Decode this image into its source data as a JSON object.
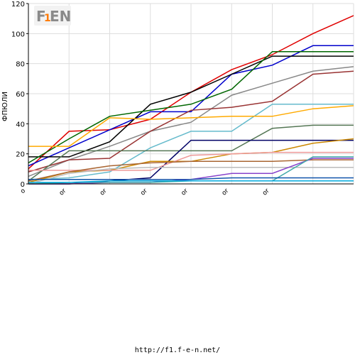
{
  "footer_url": "http://f1.f-e-n.net/",
  "logo_text": "F1EN",
  "chart_data": {
    "type": "line",
    "title": "",
    "xlabel": "",
    "ylabel": "ФПЮЛИ",
    "ylim": [
      0,
      120
    ],
    "yticks": [
      0,
      20,
      40,
      60,
      80,
      100,
      120
    ],
    "categories": [
      "o",
      "or",
      "or",
      "or",
      "or",
      "or",
      "or",
      "",
      ""
    ],
    "grid": true,
    "legend": "none",
    "series": [
      {
        "color": "#e00000",
        "values": [
          10,
          35,
          36,
          43,
          61,
          76,
          86,
          100,
          112
        ]
      },
      {
        "color": "#0000cc",
        "values": [
          12,
          24,
          36,
          48,
          48,
          73,
          79,
          92,
          92
        ]
      },
      {
        "color": "#000000",
        "values": [
          18,
          18,
          28,
          53,
          61,
          73,
          85,
          85,
          85
        ]
      },
      {
        "color": "#006600",
        "values": [
          14,
          30,
          45,
          49,
          53,
          63,
          88,
          88,
          88
        ]
      },
      {
        "color": "#888888",
        "values": [
          5,
          16,
          25,
          35,
          41,
          59,
          67,
          75,
          78
        ]
      },
      {
        "color": "#993333",
        "values": [
          8,
          16,
          17,
          35,
          49,
          51,
          55,
          73,
          75
        ]
      },
      {
        "color": "#66bbcc",
        "values": [
          3,
          4,
          8,
          24,
          35,
          35,
          53,
          53,
          53
        ]
      },
      {
        "color": "#ffaa00",
        "values": [
          25,
          25,
          44,
          43,
          44,
          45,
          45,
          50,
          52
        ]
      },
      {
        "color": "#557755",
        "values": [
          2,
          22,
          22,
          22,
          22,
          22,
          37,
          39,
          39
        ]
      },
      {
        "color": "#000066",
        "values": [
          0,
          0,
          2,
          4,
          29,
          29,
          29,
          29,
          29
        ]
      },
      {
        "color": "#cc8800",
        "values": [
          1,
          8,
          9,
          15,
          15,
          20,
          21,
          27,
          30
        ]
      },
      {
        "color": "#ee9999",
        "values": [
          9,
          9,
          9,
          9,
          19,
          20,
          21,
          21,
          21
        ]
      },
      {
        "color": "#aa6633",
        "values": [
          2,
          8,
          12,
          14,
          15,
          15,
          15,
          16,
          16
        ]
      },
      {
        "color": "#bbbbbb",
        "values": [
          0,
          7,
          10,
          11,
          11,
          11,
          11,
          11,
          11
        ]
      },
      {
        "color": "#8844cc",
        "values": [
          0,
          0,
          1,
          1,
          3,
          7,
          7,
          17,
          17
        ]
      },
      {
        "color": "#44aaaa",
        "values": [
          0,
          1,
          1,
          1,
          2,
          2,
          2,
          18,
          18
        ]
      },
      {
        "color": "#1155aa",
        "values": [
          3,
          3,
          3,
          3,
          3,
          4,
          4,
          4,
          4
        ]
      },
      {
        "color": "#00aadd",
        "values": [
          1,
          1,
          2,
          2,
          2,
          2,
          2,
          2,
          2
        ]
      }
    ]
  }
}
